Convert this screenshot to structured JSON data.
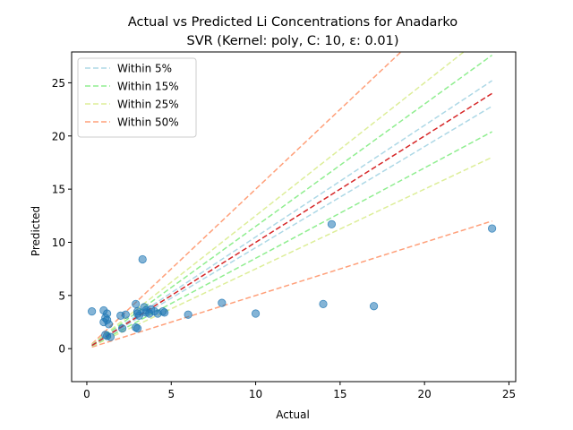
{
  "chart_data": {
    "type": "scatter",
    "title": "Actual vs Predicted Li Concentrations for Anadarko",
    "subtitle": "SVR (Kernel: poly, C: 10, ε: 0.01)",
    "xlabel": "Actual",
    "ylabel": "Predicted",
    "xlim": [
      -0.9,
      25.4
    ],
    "ylim": [
      -3.1,
      27.9
    ],
    "xticks": [
      0,
      5,
      10,
      15,
      20,
      25
    ],
    "yticks": [
      0,
      5,
      10,
      15,
      20,
      25
    ],
    "grid": false,
    "legend_position": "top-left",
    "point_color": "#1f77b4",
    "identity_line": {
      "x": [
        0.3,
        24.0
      ],
      "color": "#d62728"
    },
    "points": [
      [
        0.3,
        3.5
      ],
      [
        1.0,
        3.6
      ],
      [
        1.2,
        3.3
      ],
      [
        1.1,
        2.9
      ],
      [
        1.2,
        2.7
      ],
      [
        1.0,
        2.5
      ],
      [
        1.3,
        2.3
      ],
      [
        1.1,
        1.3
      ],
      [
        1.2,
        1.2
      ],
      [
        1.4,
        1.1
      ],
      [
        2.0,
        3.1
      ],
      [
        2.3,
        3.2
      ],
      [
        2.1,
        1.9
      ],
      [
        2.9,
        4.2
      ],
      [
        3.0,
        3.5
      ],
      [
        3.0,
        3.3
      ],
      [
        3.1,
        3.1
      ],
      [
        2.9,
        2.0
      ],
      [
        3.0,
        1.9
      ],
      [
        3.3,
        8.4
      ],
      [
        3.4,
        3.9
      ],
      [
        3.5,
        3.6
      ],
      [
        3.5,
        3.4
      ],
      [
        3.7,
        3.3
      ],
      [
        3.8,
        3.7
      ],
      [
        4.0,
        3.5
      ],
      [
        4.2,
        3.3
      ],
      [
        4.5,
        3.5
      ],
      [
        4.6,
        3.4
      ],
      [
        6.0,
        3.2
      ],
      [
        8.0,
        4.3
      ],
      [
        10.0,
        3.3
      ],
      [
        14.0,
        4.2
      ],
      [
        14.5,
        11.7
      ],
      [
        17.0,
        4.0
      ],
      [
        24.0,
        11.3
      ]
    ],
    "bands": [
      {
        "label": "Within 5%",
        "pct": 0.05,
        "color": "#add8e6"
      },
      {
        "label": "Within 15%",
        "pct": 0.15,
        "color": "#90ee90"
      },
      {
        "label": "Within 25%",
        "pct": 0.25,
        "color": "#ddee99"
      },
      {
        "label": "Within 50%",
        "pct": 0.5,
        "color": "#ffa07a"
      }
    ]
  }
}
